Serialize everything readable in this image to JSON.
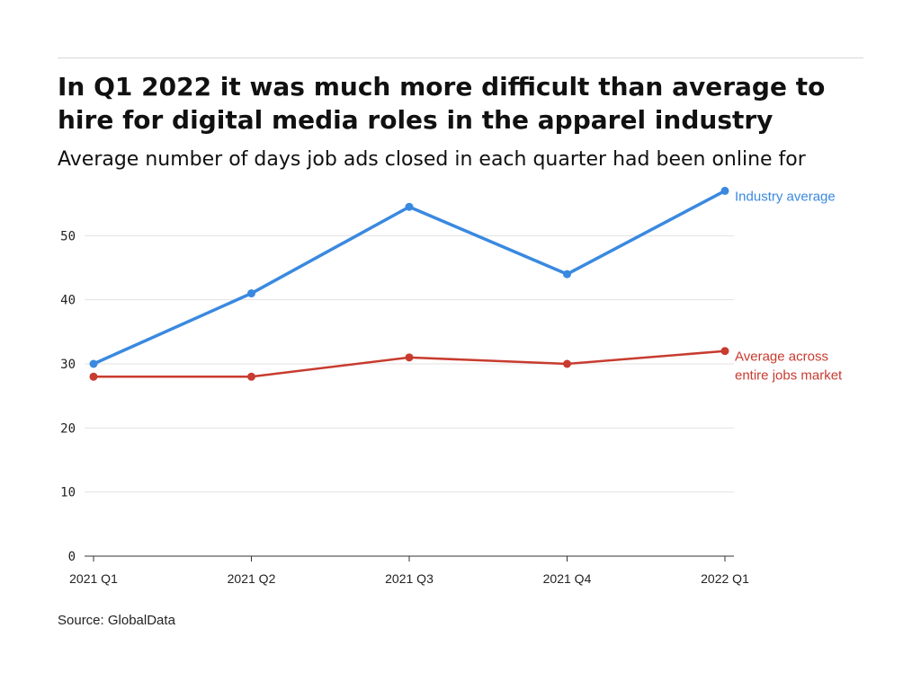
{
  "title": "In Q1 2022 it was much more difficult than average to hire for digital media roles in the apparel industry",
  "subtitle": "Average number of days job ads closed in each quarter had been online for",
  "source": "Source: GlobalData",
  "chart_data": {
    "type": "line",
    "categories": [
      "2021 Q1",
      "2021 Q2",
      "2021 Q3",
      "2021 Q4",
      "2022 Q1"
    ],
    "series": [
      {
        "name": "Industry average",
        "label_lines": [
          "Industry average"
        ],
        "color": "#3a89e0",
        "values": [
          30,
          41,
          54.5,
          44,
          57
        ]
      },
      {
        "name": "Average across entire jobs market",
        "label_lines": [
          "Average across",
          "entire jobs market"
        ],
        "color": "#c83b2f",
        "values": [
          28,
          28,
          31,
          30,
          32
        ]
      }
    ],
    "yticks": [
      0,
      10,
      20,
      30,
      40,
      50
    ],
    "ylim": [
      0,
      60
    ],
    "grid": true
  }
}
